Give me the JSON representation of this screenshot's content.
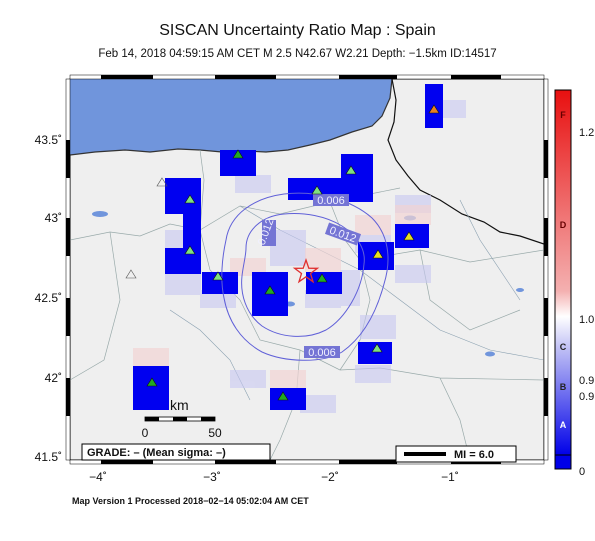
{
  "header": {
    "title": "SISCAN Uncertainty Ratio Map : Spain",
    "subtitle": "Feb 14, 2018 04:59:15 AM CET   M 2.5   N42.67 W2.21   Depth: −1.5km   ID:14517"
  },
  "axes": {
    "lat_labels": [
      "43.5˚",
      "43˚",
      "42.5˚",
      "42˚",
      "41.5˚"
    ],
    "lon_labels": [
      "−4˚",
      "−3˚",
      "−2˚",
      "−1˚"
    ]
  },
  "contours": [
    {
      "label": "0.006"
    },
    {
      "label": "0.012"
    },
    {
      "label": "0.012"
    },
    {
      "label": "0.006"
    }
  ],
  "scale_bar": {
    "unit": "km",
    "tick_start": "0",
    "tick_end": "50"
  },
  "grade_box": {
    "text": "GRADE: – (Mean sigma: –)"
  },
  "mi_legend": {
    "text": "MI = 6.0"
  },
  "colorbar": {
    "letters": [
      "F",
      "D",
      "C",
      "B",
      "A"
    ],
    "values": [
      "1.2",
      "1.0",
      "0.9",
      "0.9",
      "0"
    ]
  },
  "colors": {
    "sea": "#7095dc",
    "land": "#efefef",
    "cell_blue": "#0000f0",
    "epicenter": "#e03030",
    "contour": "#6060d8",
    "station": "#22aa22"
  },
  "footer": {
    "text": "Map Version 1 Processed 2018−02−14 05:02:04 AM CET"
  }
}
